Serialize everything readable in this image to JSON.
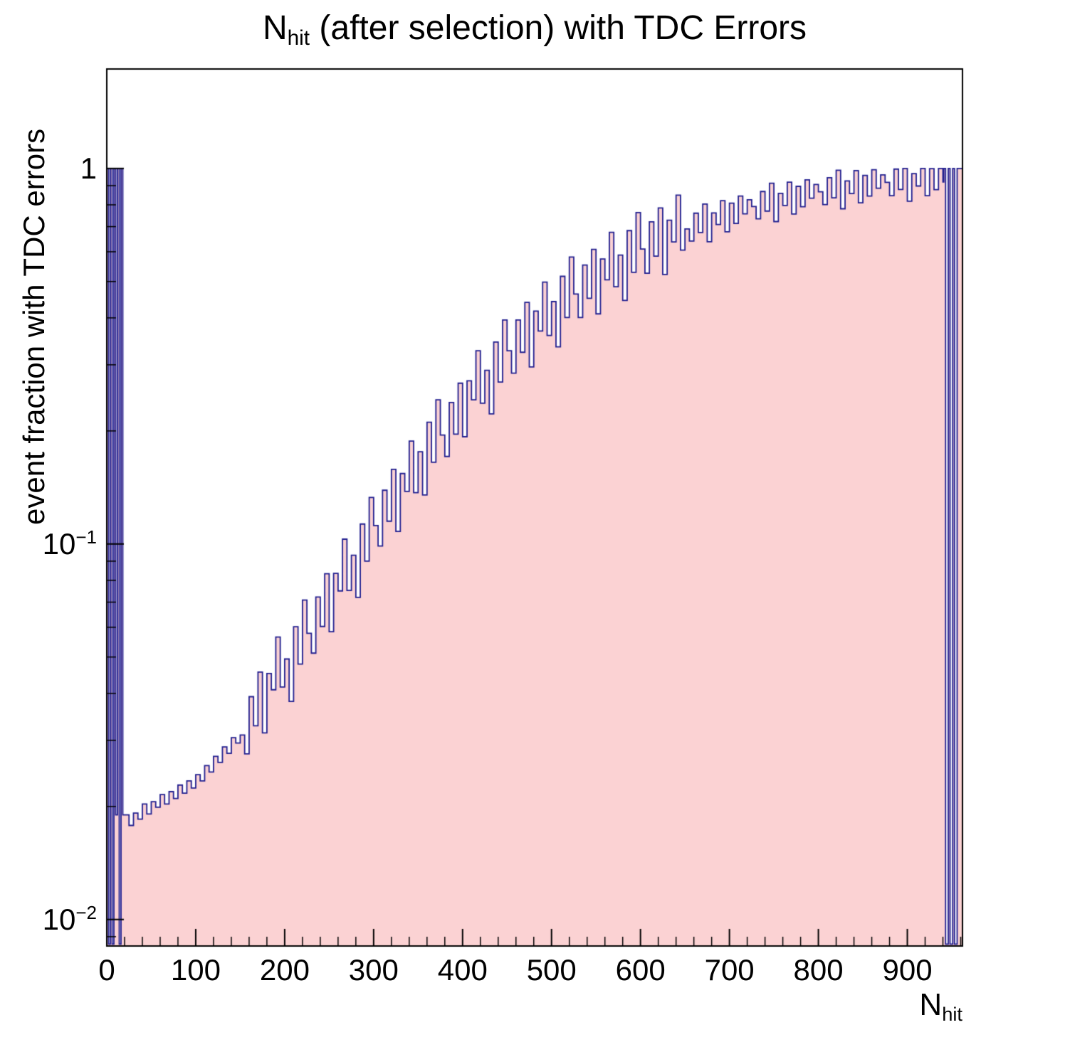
{
  "chart_data": {
    "type": "histogram",
    "title": {
      "prefix": "N",
      "sub": "hit",
      "rest": " (after selection) with TDC Errors"
    },
    "xlabel": {
      "prefix": "N",
      "sub": "hit"
    },
    "ylabel": "event fraction with TDC errors",
    "x_range": [
      0,
      962
    ],
    "y_range": [
      0.0085,
      1.84
    ],
    "y_scale": "log",
    "x_minor_step": 20,
    "x_ticks": [
      {
        "value": 0,
        "label": "0"
      },
      {
        "value": 100,
        "label": "100"
      },
      {
        "value": 200,
        "label": "200"
      },
      {
        "value": 300,
        "label": "300"
      },
      {
        "value": 400,
        "label": "400"
      },
      {
        "value": 500,
        "label": "500"
      },
      {
        "value": 600,
        "label": "600"
      },
      {
        "value": 700,
        "label": "700"
      },
      {
        "value": 800,
        "label": "800"
      },
      {
        "value": 900,
        "label": "900"
      }
    ],
    "y_ticks": [
      {
        "value": 1,
        "base": "1",
        "exp": ""
      },
      {
        "value": 0.1,
        "base": "10",
        "exp": "−1"
      },
      {
        "value": 0.01,
        "base": "10",
        "exp": "−2"
      }
    ],
    "style": {
      "fill_color": "#fbd2d3",
      "line_color": "#201e8f",
      "frame_color": "#000000",
      "text_color": "#000000",
      "background": "#ffffff"
    },
    "bins": [
      [
        0,
        1.0
      ],
      [
        2,
        0.0086
      ],
      [
        4,
        1.0
      ],
      [
        6,
        0.0086
      ],
      [
        8,
        1.0
      ],
      [
        10,
        0.019
      ],
      [
        12,
        1.0
      ],
      [
        14,
        0.0086
      ],
      [
        16,
        1.0
      ],
      [
        18,
        0.019
      ],
      [
        20,
        0.019
      ],
      [
        25,
        0.0178
      ],
      [
        30,
        0.0192
      ],
      [
        35,
        0.0185
      ],
      [
        40,
        0.0203
      ],
      [
        45,
        0.0191
      ],
      [
        50,
        0.0206
      ],
      [
        55,
        0.0199
      ],
      [
        60,
        0.0215
      ],
      [
        65,
        0.0203
      ],
      [
        70,
        0.0219
      ],
      [
        75,
        0.021
      ],
      [
        80,
        0.0228
      ],
      [
        85,
        0.0217
      ],
      [
        90,
        0.0234
      ],
      [
        95,
        0.0224
      ],
      [
        100,
        0.0243
      ],
      [
        105,
        0.0234
      ],
      [
        110,
        0.0257
      ],
      [
        115,
        0.0247
      ],
      [
        120,
        0.0272
      ],
      [
        125,
        0.0262
      ],
      [
        130,
        0.0288
      ],
      [
        135,
        0.0277
      ],
      [
        140,
        0.0305
      ],
      [
        145,
        0.0295
      ],
      [
        150,
        0.031
      ],
      [
        155,
        0.0276
      ],
      [
        160,
        0.0392
      ],
      [
        165,
        0.0328
      ],
      [
        170,
        0.0456
      ],
      [
        175,
        0.0314
      ],
      [
        180,
        0.0452
      ],
      [
        185,
        0.0409
      ],
      [
        190,
        0.0565
      ],
      [
        195,
        0.0416
      ],
      [
        200,
        0.0494
      ],
      [
        205,
        0.0381
      ],
      [
        210,
        0.0602
      ],
      [
        215,
        0.0479
      ],
      [
        220,
        0.0709
      ],
      [
        225,
        0.0578
      ],
      [
        230,
        0.0512
      ],
      [
        235,
        0.0722
      ],
      [
        240,
        0.0603
      ],
      [
        245,
        0.0833
      ],
      [
        250,
        0.0584
      ],
      [
        255,
        0.0835
      ],
      [
        260,
        0.075
      ],
      [
        265,
        0.103
      ],
      [
        270,
        0.0752
      ],
      [
        275,
        0.0933
      ],
      [
        280,
        0.0721
      ],
      [
        285,
        0.113
      ],
      [
        290,
        0.09
      ],
      [
        295,
        0.133
      ],
      [
        300,
        0.112
      ],
      [
        305,
        0.0988
      ],
      [
        310,
        0.139
      ],
      [
        315,
        0.115
      ],
      [
        320,
        0.158
      ],
      [
        325,
        0.108
      ],
      [
        330,
        0.154
      ],
      [
        335,
        0.138
      ],
      [
        340,
        0.188
      ],
      [
        345,
        0.137
      ],
      [
        350,
        0.176
      ],
      [
        355,
        0.135
      ],
      [
        360,
        0.211
      ],
      [
        365,
        0.165
      ],
      [
        370,
        0.242
      ],
      [
        375,
        0.195
      ],
      [
        380,
        0.171
      ],
      [
        385,
        0.238
      ],
      [
        390,
        0.196
      ],
      [
        395,
        0.268
      ],
      [
        400,
        0.193
      ],
      [
        405,
        0.272
      ],
      [
        410,
        0.242
      ],
      [
        415,
        0.327
      ],
      [
        420,
        0.237
      ],
      [
        425,
        0.29
      ],
      [
        430,
        0.222
      ],
      [
        435,
        0.345
      ],
      [
        440,
        0.27
      ],
      [
        445,
        0.395
      ],
      [
        450,
        0.327
      ],
      [
        455,
        0.285
      ],
      [
        460,
        0.395
      ],
      [
        465,
        0.324
      ],
      [
        470,
        0.44
      ],
      [
        475,
        0.296
      ],
      [
        480,
        0.417
      ],
      [
        485,
        0.369
      ],
      [
        490,
        0.498
      ],
      [
        495,
        0.359
      ],
      [
        500,
        0.442
      ],
      [
        505,
        0.335
      ],
      [
        510,
        0.516
      ],
      [
        515,
        0.401
      ],
      [
        520,
        0.581
      ],
      [
        525,
        0.463
      ],
      [
        530,
        0.401
      ],
      [
        535,
        0.553
      ],
      [
        540,
        0.451
      ],
      [
        545,
        0.609
      ],
      [
        550,
        0.41
      ],
      [
        555,
        0.574
      ],
      [
        560,
        0.505
      ],
      [
        565,
        0.676
      ],
      [
        570,
        0.484
      ],
      [
        575,
        0.588
      ],
      [
        580,
        0.445
      ],
      [
        585,
        0.683
      ],
      [
        590,
        0.529
      ],
      [
        595,
        0.763
      ],
      [
        600,
        0.61
      ],
      [
        605,
        0.526
      ],
      [
        610,
        0.721
      ],
      [
        615,
        0.584
      ],
      [
        620,
        0.785
      ],
      [
        625,
        0.522
      ],
      [
        630,
        0.728
      ],
      [
        635,
        0.637
      ],
      [
        640,
        0.849
      ],
      [
        645,
        0.606
      ],
      [
        650,
        0.69
      ],
      [
        655,
        0.641
      ],
      [
        660,
        0.76
      ],
      [
        665,
        0.675
      ],
      [
        670,
        0.804
      ],
      [
        675,
        0.638
      ],
      [
        680,
        0.761
      ],
      [
        685,
        0.709
      ],
      [
        690,
        0.821
      ],
      [
        695,
        0.678
      ],
      [
        700,
        0.808
      ],
      [
        705,
        0.714
      ],
      [
        710,
        0.844
      ],
      [
        715,
        0.757
      ],
      [
        720,
        0.825
      ],
      [
        725,
        0.792
      ],
      [
        730,
        0.734
      ],
      [
        735,
        0.868
      ],
      [
        740,
        0.77
      ],
      [
        745,
        0.913
      ],
      [
        750,
        0.722
      ],
      [
        755,
        0.858
      ],
      [
        760,
        0.797
      ],
      [
        765,
        0.919
      ],
      [
        770,
        0.756
      ],
      [
        775,
        0.896
      ],
      [
        780,
        0.791
      ],
      [
        785,
        0.932
      ],
      [
        790,
        0.833
      ],
      [
        795,
        0.906
      ],
      [
        800,
        0.867
      ],
      [
        805,
        0.801
      ],
      [
        810,
        0.945
      ],
      [
        815,
        0.835
      ],
      [
        820,
        0.989
      ],
      [
        825,
        0.781
      ],
      [
        830,
        0.926
      ],
      [
        835,
        0.857
      ],
      [
        840,
        0.987
      ],
      [
        845,
        0.81
      ],
      [
        850,
        0.958
      ],
      [
        855,
        0.844
      ],
      [
        860,
        0.992
      ],
      [
        865,
        0.886
      ],
      [
        870,
        0.961
      ],
      [
        875,
        0.918
      ],
      [
        880,
        0.846
      ],
      [
        885,
        0.996
      ],
      [
        890,
        0.879
      ],
      [
        895,
        1.0
      ],
      [
        900,
        0.818
      ],
      [
        905,
        0.969
      ],
      [
        910,
        0.898
      ],
      [
        915,
        1.0
      ],
      [
        920,
        0.846
      ],
      [
        925,
        0.999
      ],
      [
        930,
        0.878
      ],
      [
        935,
        1.0
      ],
      [
        940,
        0.92
      ],
      [
        941,
        1.0
      ],
      [
        943,
        0.0086
      ],
      [
        946,
        1.0
      ],
      [
        948,
        0.0086
      ],
      [
        951,
        1.0
      ],
      [
        953,
        0.0086
      ],
      [
        956,
        1.0
      ],
      [
        958,
        1.0
      ]
    ]
  }
}
